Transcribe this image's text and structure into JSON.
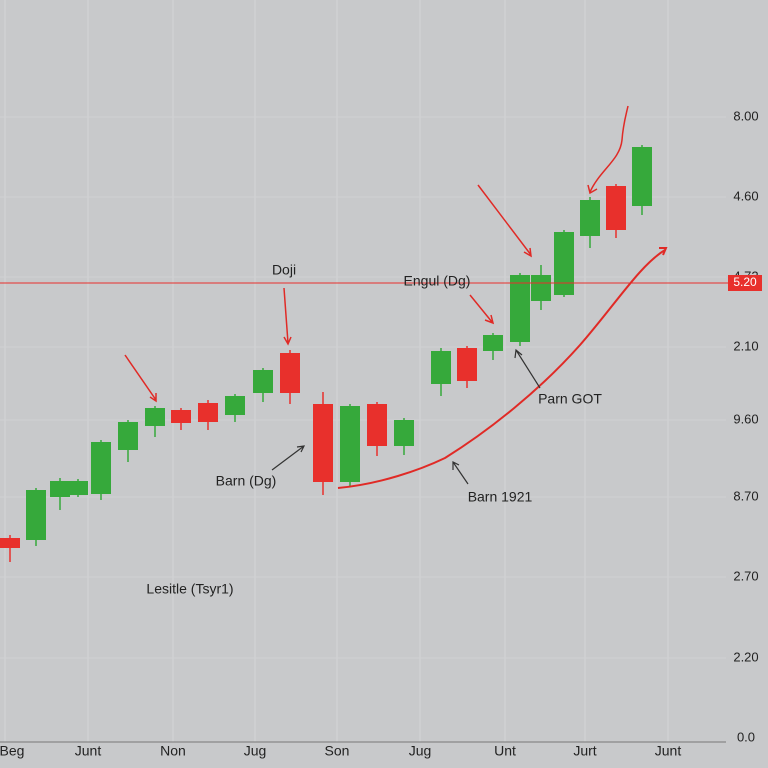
{
  "chart_data": {
    "type": "candlestick",
    "x": [
      10,
      36,
      60,
      78,
      101,
      128,
      155,
      181,
      208,
      235,
      263,
      290,
      323,
      350,
      377,
      404,
      441,
      467,
      493,
      520,
      541,
      564,
      590,
      616,
      642
    ],
    "open": [
      200,
      198,
      241,
      243,
      244,
      288,
      312,
      328,
      335,
      323,
      345,
      385,
      334,
      256,
      334,
      292,
      354,
      390,
      387,
      396,
      437,
      443,
      502,
      552,
      532
    ],
    "high": [
      203,
      250,
      260,
      259,
      298,
      318,
      332,
      330,
      338,
      344,
      370,
      388,
      346,
      334,
      336,
      320,
      390,
      392,
      405,
      465,
      473,
      508,
      541,
      554,
      593
    ],
    "low": [
      176,
      192,
      228,
      241,
      238,
      276,
      301,
      308,
      308,
      316,
      336,
      334,
      243,
      252,
      282,
      283,
      342,
      350,
      378,
      392,
      428,
      441,
      490,
      500,
      523
    ],
    "close": [
      190,
      248,
      257,
      257,
      296,
      316,
      330,
      315,
      316,
      342,
      368,
      345,
      256,
      332,
      292,
      318,
      387,
      357,
      403,
      463,
      463,
      506,
      538,
      508,
      591
    ],
    "up_color": "#36a93b",
    "down_color": "#e8302c",
    "xlim": [
      0,
      768
    ],
    "xticks": [
      {
        "value": 5,
        "label": "Beg"
      },
      {
        "value": 88,
        "label": "Junt"
      },
      {
        "value": 173,
        "label": "Non"
      },
      {
        "value": 255,
        "label": "Jug"
      },
      {
        "value": 337,
        "label": "Son"
      },
      {
        "value": 420,
        "label": "Jug"
      },
      {
        "value": 505,
        "label": "Unt"
      },
      {
        "value": 585,
        "label": "Jurt"
      },
      {
        "value": 668,
        "label": "Junt"
      }
    ],
    "ylim": [
      0,
      700
    ],
    "y_labels": [
      "8.00",
      "4.60",
      "4.72",
      "2.10",
      "9.60",
      "8.70",
      "2.70",
      "2.20",
      "0.0"
    ],
    "grid": true,
    "price_line": 455,
    "price_line_color": "#e8302c",
    "price_tag": "5.20",
    "annotations": [
      "Doji",
      "Engul (Dg)",
      "Parn GOT",
      "Barn (Dg)",
      "Barn 1921",
      "Lesitle (Tsyr1)"
    ]
  }
}
